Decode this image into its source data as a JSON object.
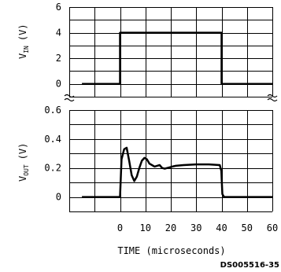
{
  "chart_data": {
    "type": "line",
    "panels": [
      {
        "ylabel": "V",
        "ylabel_sub": "IN",
        "ylabel_unit": "(V)",
        "yticks": [
          "6",
          "4",
          "2",
          "0"
        ],
        "ylim": [
          -1,
          6
        ],
        "series": [
          {
            "x": [
              -15,
              0,
              0,
              40,
              40,
              60
            ],
            "y": [
              0,
              0,
              4,
              4,
              0,
              0
            ]
          }
        ]
      },
      {
        "ylabel": "V",
        "ylabel_sub": "OUT",
        "ylabel_unit": "(V)",
        "yticks": [
          "0.6",
          "0.4",
          "0.2",
          "0"
        ],
        "ylim": [
          -0.1,
          0.6
        ],
        "series": [
          {
            "x": [
              -15,
              0,
              0.6,
              1.6,
              2.6,
              3.6,
              4.6,
              5.6,
              6.6,
              7.6,
              8.6,
              9.6,
              10.6,
              11.6,
              12.6,
              13.6,
              14.6,
              15.6,
              16.6,
              17.6,
              18.6,
              19.6,
              20.6,
              22,
              25,
              30,
              35,
              39.3,
              39.9,
              40.3,
              41,
              60
            ],
            "y": [
              0,
              0,
              0.26,
              0.33,
              0.34,
              0.25,
              0.15,
              0.11,
              0.14,
              0.2,
              0.25,
              0.27,
              0.26,
              0.23,
              0.22,
              0.21,
              0.215,
              0.22,
              0.2,
              0.195,
              0.2,
              0.205,
              0.21,
              0.215,
              0.22,
              0.225,
              0.225,
              0.22,
              0.18,
              0.02,
              0,
              0
            ]
          }
        ]
      }
    ],
    "xticks": [
      "0",
      "10",
      "20",
      "30",
      "40",
      "50",
      "60"
    ],
    "xlabel": "TIME (microseconds)",
    "xlim": [
      -20,
      60
    ],
    "grid": true,
    "code": "DS005516-35"
  }
}
